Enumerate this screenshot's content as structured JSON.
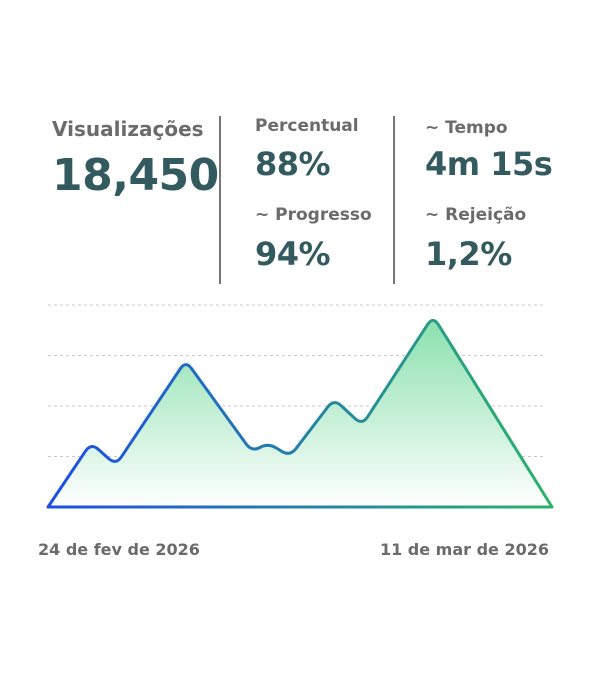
{
  "stats": {
    "views": {
      "label": "Visualizações",
      "value": "18,450"
    },
    "percent": {
      "label": "Percentual",
      "value": "88%"
    },
    "progress": {
      "label": "~ Progresso",
      "value": "94%"
    },
    "time": {
      "label": "~ Tempo",
      "value": "4m 15s"
    },
    "rejection": {
      "label": "~ Rejeição",
      "value": "1,2%"
    }
  },
  "colors": {
    "text_value": "#335a5e",
    "text_label": "#6b6b6b",
    "line_start": "#1d4ee6",
    "line_end": "#2bb36a",
    "fill_top": "#86dfaa"
  },
  "chart_data": {
    "type": "area",
    "title": "",
    "xlabel": "",
    "ylabel": "",
    "x_tick_labels": [
      "24 de fev de 2026",
      "11 de mar de 2026"
    ],
    "x_unit": "days since 24 fev 2026",
    "xlim": [
      0,
      15
    ],
    "ylim": [
      0,
      4
    ],
    "grid": true,
    "gridlines": [
      1,
      2,
      3,
      4
    ],
    "series": [
      {
        "name": "Visualizações",
        "x": [
          0,
          1.28,
          2.02,
          4.1,
          6.07,
          6.55,
          7.2,
          8.51,
          9.35,
          11.46,
          15
        ],
        "y": [
          0,
          1.27,
          0.83,
          2.9,
          1.09,
          1.27,
          1.0,
          2.14,
          1.62,
          3.78,
          0
        ]
      }
    ]
  }
}
